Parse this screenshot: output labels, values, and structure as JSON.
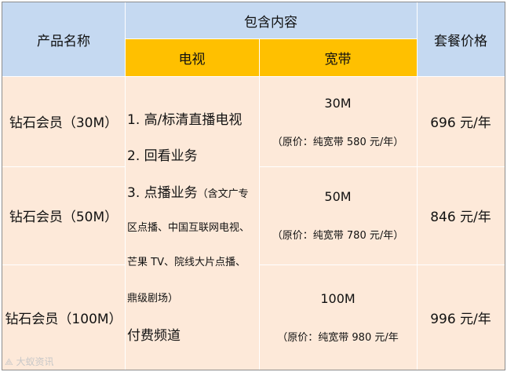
{
  "header": {
    "product_name": "产品名称",
    "included_content": "包含内容",
    "package_price": "套餐价格",
    "tv": "电视",
    "broadband": "宽带"
  },
  "tv_content": {
    "line1": "1. 高/标清直播电视",
    "line2": "2. 回看业务",
    "line3a": "3. 点播业务",
    "line3b": "（含文广专",
    "line4": "区点播、中国互联网电视、",
    "line5": "芒果 TV、院线大片点播、",
    "line6": "鼎级剧场）",
    "line7": "付费频道"
  },
  "rows": [
    {
      "name": "钻石会员（30M）",
      "bandwidth": "30M",
      "original_price": "（原价：纯宽带 580 元/年）",
      "price": "696 元/年"
    },
    {
      "name": "钻石会员（50M）",
      "bandwidth": "50M",
      "original_price": "（原价：纯宽带 780 元/年）",
      "price": "846 元/年"
    },
    {
      "name": "钻石会员（100M）",
      "bandwidth": "100M",
      "original_price": "（原价：纯宽带 980 元/年",
      "price": "996 元/年"
    }
  ],
  "watermark": "大蚁资讯"
}
